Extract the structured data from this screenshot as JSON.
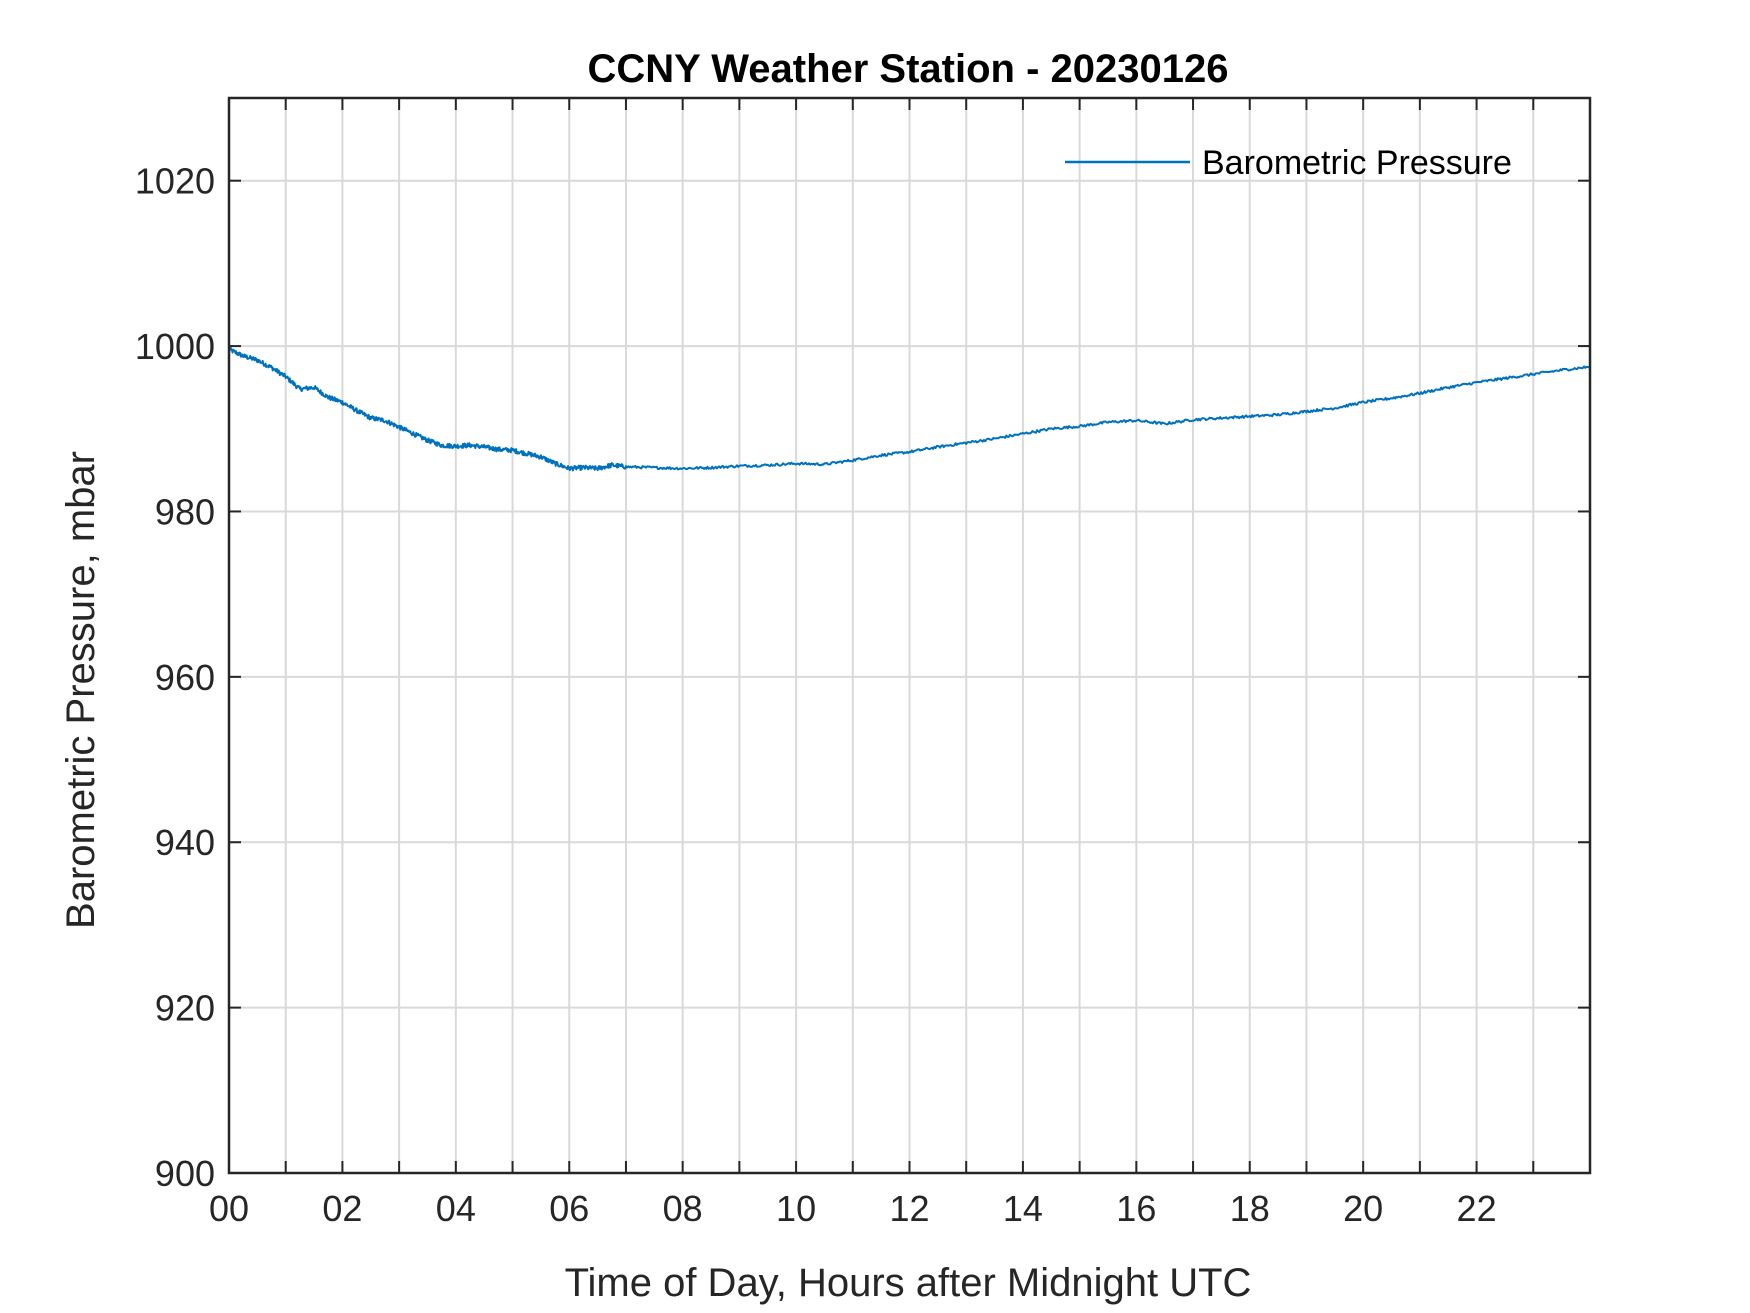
{
  "chart_data": {
    "type": "line",
    "title": "CCNY Weather Station - 20230126",
    "xlabel": "Time of Day, Hours after Midnight UTC",
    "ylabel": "Barometric Pressure, mbar",
    "xlim": [
      0,
      24
    ],
    "ylim": [
      900,
      1030
    ],
    "grid": true,
    "legend_position": "top-right",
    "x_ticks": [
      0,
      2,
      4,
      6,
      8,
      10,
      12,
      14,
      16,
      18,
      20,
      22
    ],
    "x_tick_labels": [
      "00",
      "02",
      "04",
      "06",
      "08",
      "10",
      "12",
      "14",
      "16",
      "18",
      "20",
      "22"
    ],
    "x_minor_grid": [
      1,
      3,
      5,
      7,
      9,
      11,
      13,
      15,
      17,
      19,
      21,
      23
    ],
    "y_ticks": [
      900,
      920,
      940,
      960,
      980,
      1000,
      1020
    ],
    "y_tick_labels": [
      "900",
      "920",
      "940",
      "960",
      "980",
      "1000",
      "1020"
    ],
    "series": [
      {
        "name": "Barometric Pressure",
        "color": "#0072BD",
        "x": [
          0,
          0.25,
          0.5,
          0.75,
          1.0,
          1.25,
          1.5,
          1.75,
          2.0,
          2.25,
          2.5,
          2.75,
          3.0,
          3.25,
          3.5,
          3.75,
          4.0,
          4.25,
          4.5,
          4.75,
          5.0,
          5.25,
          5.5,
          5.75,
          6.0,
          6.25,
          6.5,
          6.75,
          7.0,
          7.5,
          8.0,
          8.5,
          9.0,
          9.5,
          10.0,
          10.5,
          11.0,
          11.5,
          12.0,
          12.5,
          13.0,
          13.5,
          14.0,
          14.5,
          15.0,
          15.5,
          16.0,
          16.5,
          17.0,
          17.5,
          18.0,
          18.5,
          19.0,
          19.5,
          20.0,
          20.5,
          21.0,
          21.5,
          22.0,
          22.5,
          23.0,
          23.5,
          24.0
        ],
        "values": [
          999.6,
          998.8,
          998.3,
          997.4,
          996.3,
          994.8,
          995.0,
          993.8,
          993.2,
          992.2,
          991.3,
          991.0,
          990.2,
          989.4,
          988.6,
          988.0,
          987.9,
          988.0,
          987.8,
          987.5,
          987.4,
          987.0,
          986.6,
          985.8,
          985.2,
          985.3,
          985.2,
          985.6,
          985.4,
          985.3,
          985.2,
          985.3,
          985.5,
          985.6,
          985.8,
          985.7,
          986.2,
          986.8,
          987.2,
          987.8,
          988.3,
          988.8,
          989.4,
          990.0,
          990.3,
          990.8,
          991.0,
          990.6,
          991.1,
          991.3,
          991.5,
          991.7,
          992.1,
          992.5,
          993.2,
          993.7,
          994.3,
          995.0,
          995.6,
          996.1,
          996.6,
          997.1,
          997.5
        ]
      }
    ]
  }
}
